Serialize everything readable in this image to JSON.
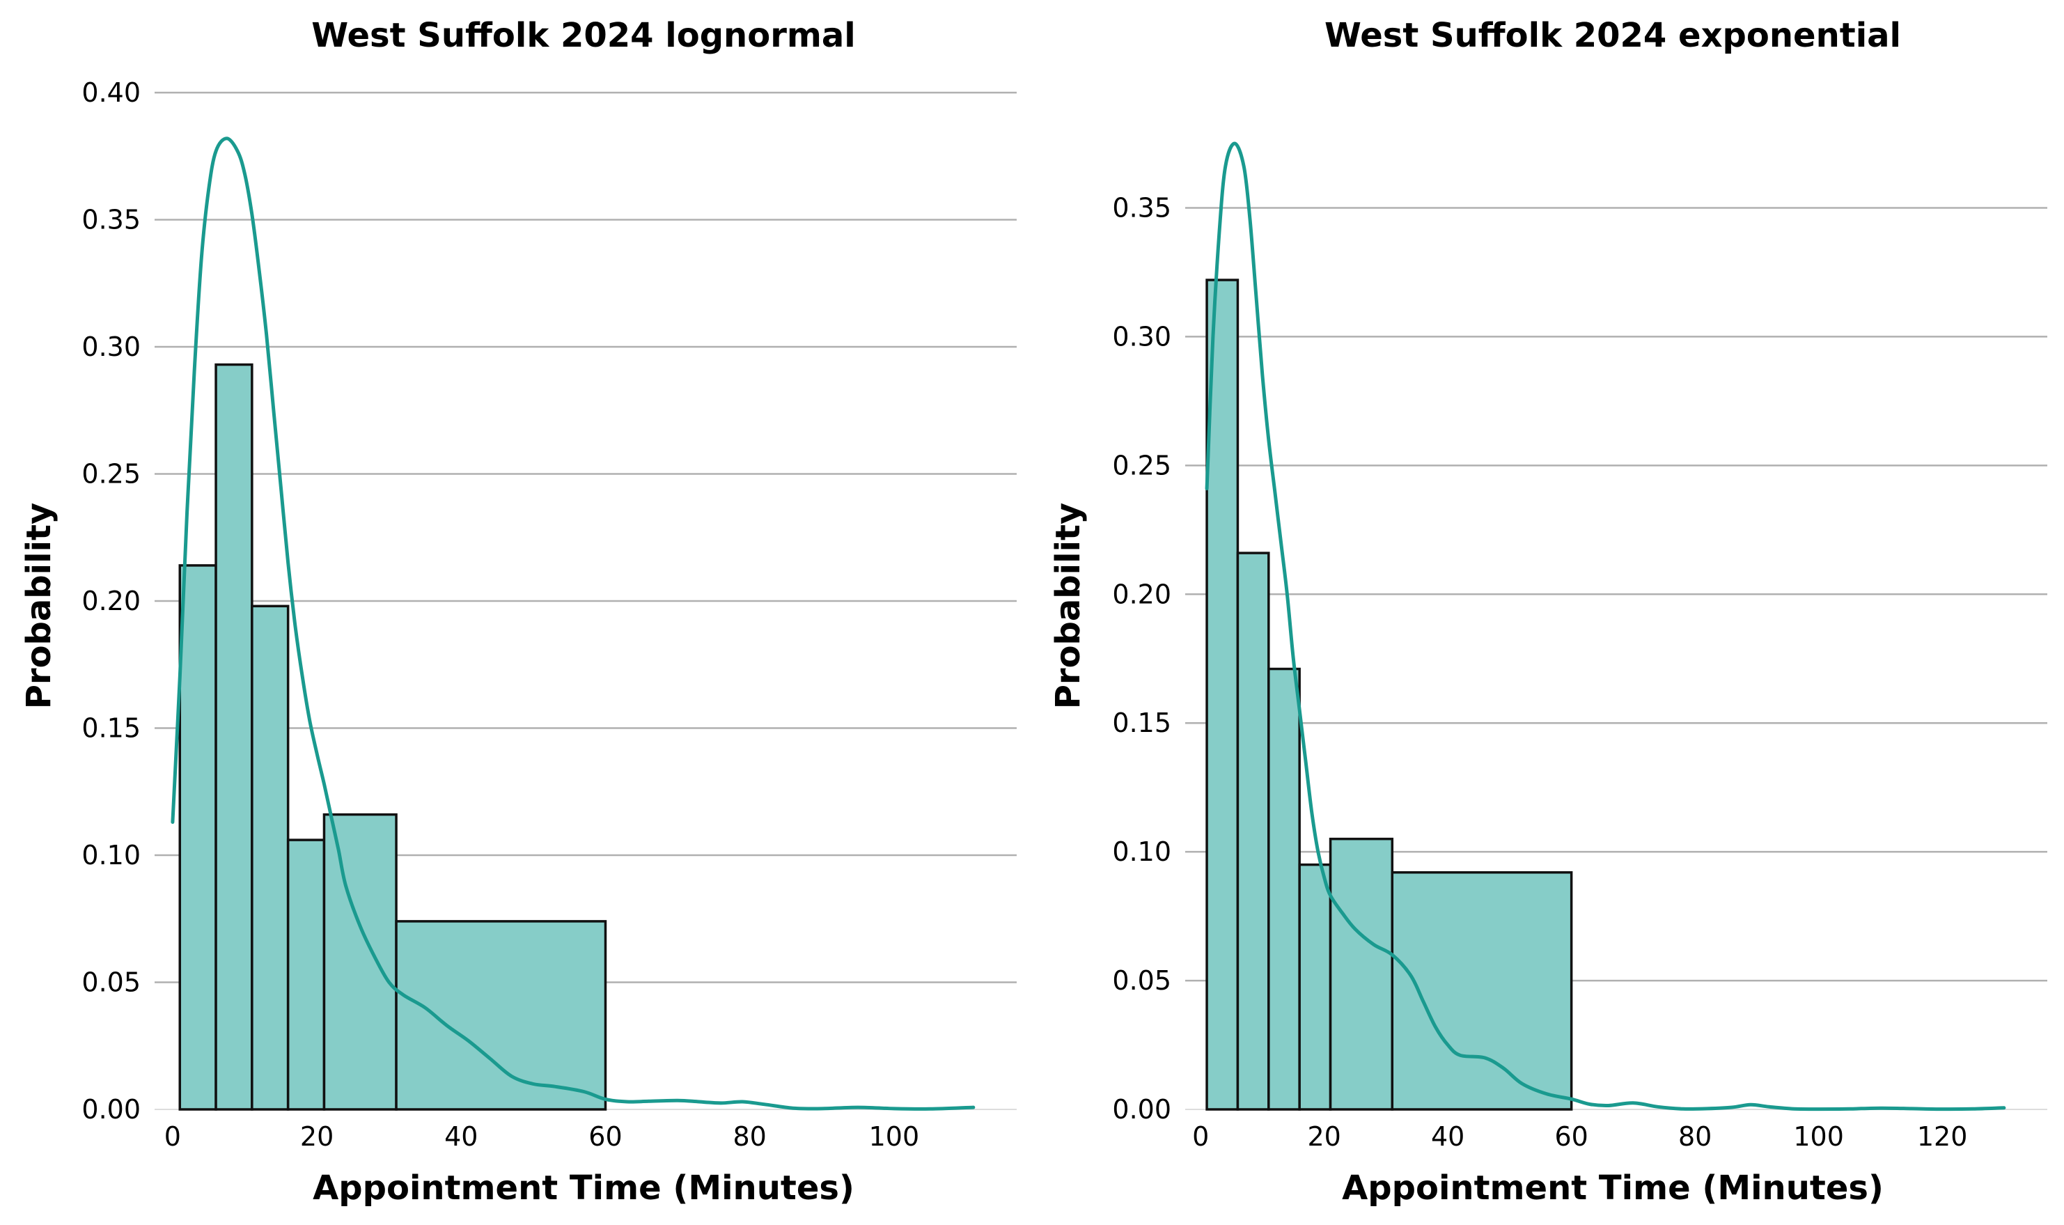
{
  "colors": {
    "bar_fill": "#86cdc8",
    "kde_line": "#1a9a8f",
    "bar_edge": "#111111",
    "grid": "#b0b0b0"
  },
  "chart_data": [
    {
      "type": "bar",
      "title": "West Suffolk 2024 lognormal",
      "xlabel": "Appointment Time (Minutes)",
      "ylabel": "Probability",
      "xlim": [
        -2.5,
        117
      ],
      "ylim": [
        0,
        0.4
      ],
      "xticks": [
        0,
        20,
        40,
        60,
        80,
        100
      ],
      "yticks": [
        0.0,
        0.05,
        0.1,
        0.15,
        0.2,
        0.25,
        0.3,
        0.35,
        0.4
      ],
      "grid": "y",
      "bins": [
        {
          "x0": 1,
          "x1": 6,
          "value": 0.214
        },
        {
          "x0": 6,
          "x1": 11,
          "value": 0.293
        },
        {
          "x0": 11,
          "x1": 16,
          "value": 0.198
        },
        {
          "x0": 16,
          "x1": 21,
          "value": 0.106
        },
        {
          "x0": 21,
          "x1": 31,
          "value": 0.116
        },
        {
          "x0": 31,
          "x1": 60,
          "value": 0.074
        }
      ],
      "kde": [
        [
          0,
          0.113
        ],
        [
          1,
          0.17
        ],
        [
          2,
          0.235
        ],
        [
          3,
          0.29
        ],
        [
          4,
          0.335
        ],
        [
          5,
          0.362
        ],
        [
          6,
          0.377
        ],
        [
          7.5,
          0.382
        ],
        [
          9,
          0.377
        ],
        [
          10,
          0.368
        ],
        [
          11,
          0.352
        ],
        [
          12,
          0.33
        ],
        [
          13,
          0.305
        ],
        [
          14,
          0.275
        ],
        [
          15,
          0.245
        ],
        [
          16,
          0.215
        ],
        [
          17,
          0.19
        ],
        [
          18,
          0.17
        ],
        [
          19,
          0.153
        ],
        [
          20,
          0.14
        ],
        [
          21,
          0.128
        ],
        [
          22,
          0.115
        ],
        [
          23,
          0.102
        ],
        [
          24,
          0.088
        ],
        [
          26,
          0.072
        ],
        [
          28,
          0.06
        ],
        [
          30,
          0.05
        ],
        [
          32,
          0.045
        ],
        [
          35,
          0.04
        ],
        [
          38,
          0.033
        ],
        [
          41,
          0.027
        ],
        [
          44,
          0.02
        ],
        [
          47,
          0.013
        ],
        [
          50,
          0.01
        ],
        [
          53,
          0.009
        ],
        [
          57,
          0.007
        ],
        [
          60,
          0.004
        ],
        [
          63,
          0.003
        ],
        [
          66,
          0.0032
        ],
        [
          70,
          0.0035
        ],
        [
          73,
          0.003
        ],
        [
          76,
          0.0025
        ],
        [
          79,
          0.003
        ],
        [
          82,
          0.002
        ],
        [
          86,
          0.0005
        ],
        [
          90,
          0.0003
        ],
        [
          95,
          0.0008
        ],
        [
          100,
          0.0003
        ],
        [
          105,
          0.0002
        ],
        [
          111,
          0.0008
        ]
      ]
    },
    {
      "type": "bar",
      "title": "West Suffolk 2024 exponential",
      "xlabel": "Appointment Time (Minutes)",
      "ylabel": "Probability",
      "xlim": [
        -2.5,
        137
      ],
      "ylim": [
        0,
        0.395
      ],
      "xticks": [
        0,
        20,
        40,
        60,
        80,
        100,
        120
      ],
      "yticks": [
        0.0,
        0.05,
        0.1,
        0.15,
        0.2,
        0.25,
        0.3,
        0.35
      ],
      "grid": "y",
      "bins": [
        {
          "x0": 1,
          "x1": 6,
          "value": 0.322
        },
        {
          "x0": 6,
          "x1": 11,
          "value": 0.216
        },
        {
          "x0": 11,
          "x1": 16,
          "value": 0.171
        },
        {
          "x0": 16,
          "x1": 21,
          "value": 0.095
        },
        {
          "x0": 21,
          "x1": 31,
          "value": 0.105
        },
        {
          "x0": 31,
          "x1": 60,
          "value": 0.092
        }
      ],
      "kde": [
        [
          1,
          0.241
        ],
        [
          2,
          0.3
        ],
        [
          3,
          0.34
        ],
        [
          4,
          0.366
        ],
        [
          5.5,
          0.375
        ],
        [
          7,
          0.366
        ],
        [
          8,
          0.345
        ],
        [
          9,
          0.315
        ],
        [
          10,
          0.285
        ],
        [
          11,
          0.26
        ],
        [
          12,
          0.24
        ],
        [
          13,
          0.22
        ],
        [
          14,
          0.2
        ],
        [
          15,
          0.175
        ],
        [
          16,
          0.155
        ],
        [
          17,
          0.135
        ],
        [
          18,
          0.115
        ],
        [
          19,
          0.1
        ],
        [
          20,
          0.09
        ],
        [
          21,
          0.083
        ],
        [
          23,
          0.076
        ],
        [
          25,
          0.07
        ],
        [
          28,
          0.064
        ],
        [
          31,
          0.06
        ],
        [
          34,
          0.052
        ],
        [
          36,
          0.042
        ],
        [
          38,
          0.032
        ],
        [
          40,
          0.025
        ],
        [
          42,
          0.021
        ],
        [
          46,
          0.02
        ],
        [
          49,
          0.016
        ],
        [
          52,
          0.01
        ],
        [
          56,
          0.006
        ],
        [
          60,
          0.004
        ],
        [
          63,
          0.002
        ],
        [
          66,
          0.0015
        ],
        [
          70,
          0.0025
        ],
        [
          74,
          0.001
        ],
        [
          78,
          0.0002
        ],
        [
          82,
          0.0003
        ],
        [
          86,
          0.0008
        ],
        [
          89,
          0.0018
        ],
        [
          92,
          0.001
        ],
        [
          96,
          0.0002
        ],
        [
          100,
          0.0001
        ],
        [
          105,
          0.0002
        ],
        [
          110,
          0.0005
        ],
        [
          115,
          0.0003
        ],
        [
          120,
          0.0001
        ],
        [
          125,
          0.0002
        ],
        [
          130,
          0.0006
        ]
      ]
    }
  ]
}
